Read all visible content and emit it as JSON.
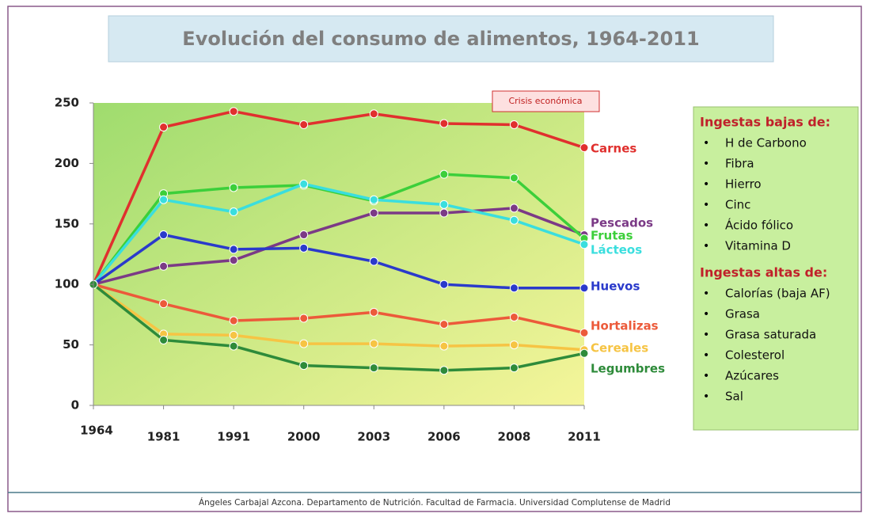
{
  "chart_data": {
    "type": "line",
    "title": "Evolución del consumo de alimentos, 1964-2011",
    "annotation": "Crisis económica",
    "footer": "Ángeles Carbajal Azcona. Departamento de Nutrición. Facultad de Farmacia. Universidad Complutense de Madrid",
    "categories": [
      "1964",
      "1981",
      "1991",
      "2000",
      "2003",
      "2006",
      "2008",
      "2011"
    ],
    "ylim": [
      0,
      250
    ],
    "yticks": [
      0,
      50,
      100,
      150,
      200,
      250
    ],
    "series": [
      {
        "name": "Carnes",
        "color": "#e0302e",
        "values": [
          100,
          230,
          243,
          232,
          241,
          233,
          232,
          213
        ]
      },
      {
        "name": "Pescados",
        "color": "#7b3a86",
        "values": [
          100,
          115,
          120,
          141,
          159,
          159,
          163,
          141
        ]
      },
      {
        "name": "Frutas",
        "color": "#3ccf3a",
        "values": [
          100,
          175,
          180,
          182,
          169,
          191,
          188,
          138
        ]
      },
      {
        "name": "Lácteos",
        "color": "#3adede",
        "values": [
          100,
          170,
          160,
          183,
          170,
          166,
          153,
          133
        ]
      },
      {
        "name": "Huevos",
        "color": "#2a3acb",
        "values": [
          100,
          141,
          129,
          130,
          119,
          100,
          97,
          97
        ]
      },
      {
        "name": "Hortalizas",
        "color": "#ec5a3a",
        "values": [
          100,
          84,
          70,
          72,
          77,
          67,
          73,
          60
        ]
      },
      {
        "name": "Cereales",
        "color": "#f6c444",
        "values": [
          100,
          59,
          58,
          51,
          51,
          49,
          50,
          46
        ]
      },
      {
        "name": "Legumbres",
        "color": "#2e8b3a",
        "values": [
          100,
          54,
          49,
          33,
          31,
          29,
          31,
          43
        ]
      }
    ]
  },
  "side_box": {
    "low_title": "Ingestas bajas de:",
    "low_items": [
      "H de Carbono",
      "Fibra",
      "Hierro",
      "Cinc",
      "Ácido fólico",
      "Vitamina D"
    ],
    "high_title": "Ingestas altas de:",
    "high_items": [
      "Calorías (baja AF)",
      "Grasa",
      "Grasa saturada",
      "Colesterol",
      "Azúcares",
      "Sal"
    ]
  }
}
